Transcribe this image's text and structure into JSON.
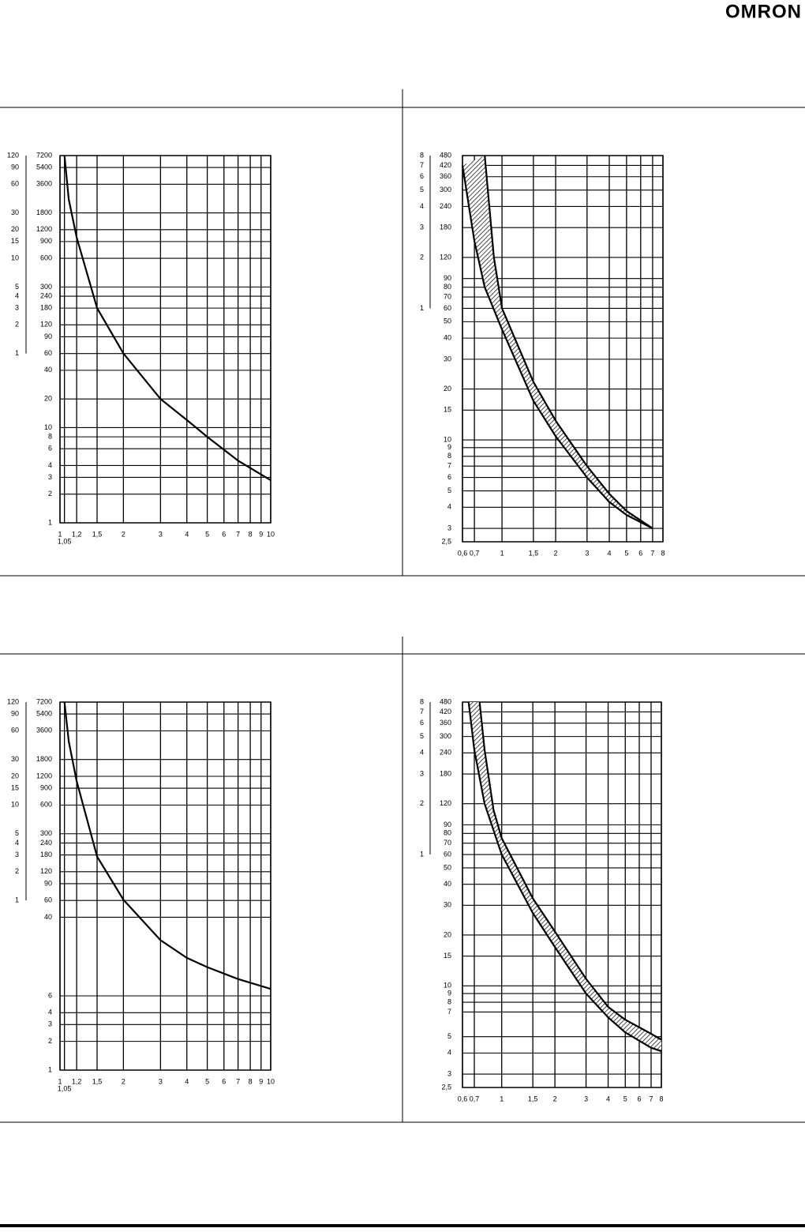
{
  "header": {
    "logo": "OMRON"
  },
  "chart_data": [
    {
      "type": "line",
      "xlog": true,
      "ylog": true,
      "grid": true,
      "band": false,
      "xlim": [
        1,
        10
      ],
      "ylim": [
        1,
        7200
      ],
      "xticks": [
        1,
        {
          "value": 1.05,
          "label": "1,05"
        },
        {
          "value": 1.2,
          "label": "1,2"
        },
        {
          "value": 1.5,
          "label": "1,5"
        },
        2,
        3,
        4,
        5,
        6,
        7,
        8,
        9,
        10
      ],
      "yticks": [
        7200,
        5400,
        3600,
        1800,
        1200,
        900,
        600,
        300,
        240,
        180,
        120,
        90,
        60,
        40,
        20,
        10,
        8,
        6,
        4,
        3,
        2,
        1
      ],
      "y2lim": [
        0.016667,
        120
      ],
      "y2ticks": [
        120,
        90,
        60,
        30,
        20,
        15,
        10,
        5,
        4,
        3,
        2,
        1
      ],
      "series": [
        {
          "color": "#000000",
          "x": [
            1.05,
            1.1,
            1.2,
            1.5,
            2,
            3,
            4,
            5,
            7,
            10
          ],
          "values": [
            7200,
            2500,
            1000,
            180,
            60,
            20,
            12,
            8,
            4.5,
            2.8
          ]
        }
      ]
    },
    {
      "type": "line",
      "xlog": true,
      "ylog": true,
      "grid": true,
      "band": true,
      "xlim": [
        0.6,
        8
      ],
      "ylim": [
        2.5,
        480
      ],
      "xticks": [
        {
          "value": 0.6,
          "label": "0,6"
        },
        {
          "value": 0.7,
          "label": "0,7"
        },
        1,
        {
          "value": 1.5,
          "label": "1,5"
        },
        2,
        3,
        4,
        5,
        6,
        7,
        8
      ],
      "yticks": [
        480,
        420,
        360,
        300,
        240,
        180,
        120,
        90,
        80,
        70,
        60,
        50,
        40,
        30,
        20,
        15,
        10,
        9,
        8,
        7,
        6,
        5,
        4,
        3,
        {
          "value": 2.5,
          "label": "2,5"
        }
      ],
      "y2lim": [
        0.041667,
        8
      ],
      "y2ticks": [
        8,
        7,
        6,
        5,
        4,
        3,
        2,
        1
      ],
      "series": [
        {
          "color": "#000000",
          "x": [
            0.6,
            0.7,
            0.8,
            1,
            1.5,
            2,
            3,
            4,
            5,
            7
          ],
          "values": [
            420,
            150,
            80,
            45,
            17,
            10.5,
            6,
            4.3,
            3.6,
            3
          ]
        },
        {
          "color": "#000000",
          "x": [
            0.8,
            0.9,
            1,
            1.5,
            2,
            3,
            4,
            5,
            7
          ],
          "values": [
            480,
            120,
            60,
            22,
            13,
            7,
            4.8,
            3.8,
            3
          ]
        }
      ]
    },
    {
      "type": "line",
      "xlog": true,
      "ylog": true,
      "grid": true,
      "band": false,
      "xlim": [
        1,
        10
      ],
      "ylim": [
        1,
        7200
      ],
      "xticks": [
        1,
        {
          "value": 1.05,
          "label": "1,05"
        },
        {
          "value": 1.2,
          "label": "1,2"
        },
        {
          "value": 1.5,
          "label": "1,5"
        },
        2,
        3,
        4,
        5,
        6,
        7,
        8,
        9,
        10
      ],
      "yticks": [
        7200,
        5400,
        3600,
        1800,
        1200,
        900,
        600,
        300,
        240,
        180,
        120,
        90,
        60,
        40,
        6,
        4,
        3,
        2,
        1
      ],
      "y2lim": [
        0.016667,
        120
      ],
      "y2ticks": [
        120,
        90,
        60,
        30,
        20,
        15,
        10,
        5,
        4,
        3,
        2,
        1
      ],
      "series": [
        {
          "color": "#000000",
          "x": [
            1.05,
            1.1,
            1.2,
            1.5,
            2,
            3,
            4,
            5,
            7,
            10
          ],
          "values": [
            7200,
            2800,
            1070,
            173,
            61,
            23,
            15,
            12,
            9,
            7.1
          ]
        }
      ]
    },
    {
      "type": "line",
      "xlog": true,
      "ylog": true,
      "grid": true,
      "band": true,
      "xlim": [
        0.6,
        8
      ],
      "ylim": [
        2.5,
        480
      ],
      "xticks": [
        {
          "value": 0.6,
          "label": "0,6"
        },
        {
          "value": 0.7,
          "label": "0,7"
        },
        1,
        {
          "value": 1.5,
          "label": "1,5"
        },
        2,
        3,
        4,
        5,
        6,
        7,
        8
      ],
      "yticks": [
        480,
        420,
        360,
        300,
        240,
        180,
        120,
        90,
        80,
        70,
        60,
        50,
        40,
        30,
        20,
        15,
        10,
        9,
        8,
        7,
        5,
        4,
        3,
        {
          "value": 2.5,
          "label": "2,5"
        }
      ],
      "y2lim": [
        0.041667,
        8
      ],
      "y2ticks": [
        8,
        7,
        6,
        5,
        4,
        3,
        2,
        1
      ],
      "series": [
        {
          "color": "#000000",
          "x": [
            0.65,
            0.7,
            0.8,
            1,
            1.5,
            2,
            3,
            4,
            5,
            7,
            8
          ],
          "values": [
            480,
            250,
            120,
            60,
            27,
            17,
            9,
            6.5,
            5.3,
            4.3,
            4.1
          ]
        },
        {
          "color": "#000000",
          "x": [
            0.75,
            0.8,
            0.9,
            1,
            1.5,
            2,
            3,
            4,
            5,
            7,
            8
          ],
          "values": [
            480,
            250,
            110,
            75,
            33,
            21,
            11,
            7.5,
            6.3,
            5.2,
            4.8
          ]
        }
      ]
    }
  ]
}
